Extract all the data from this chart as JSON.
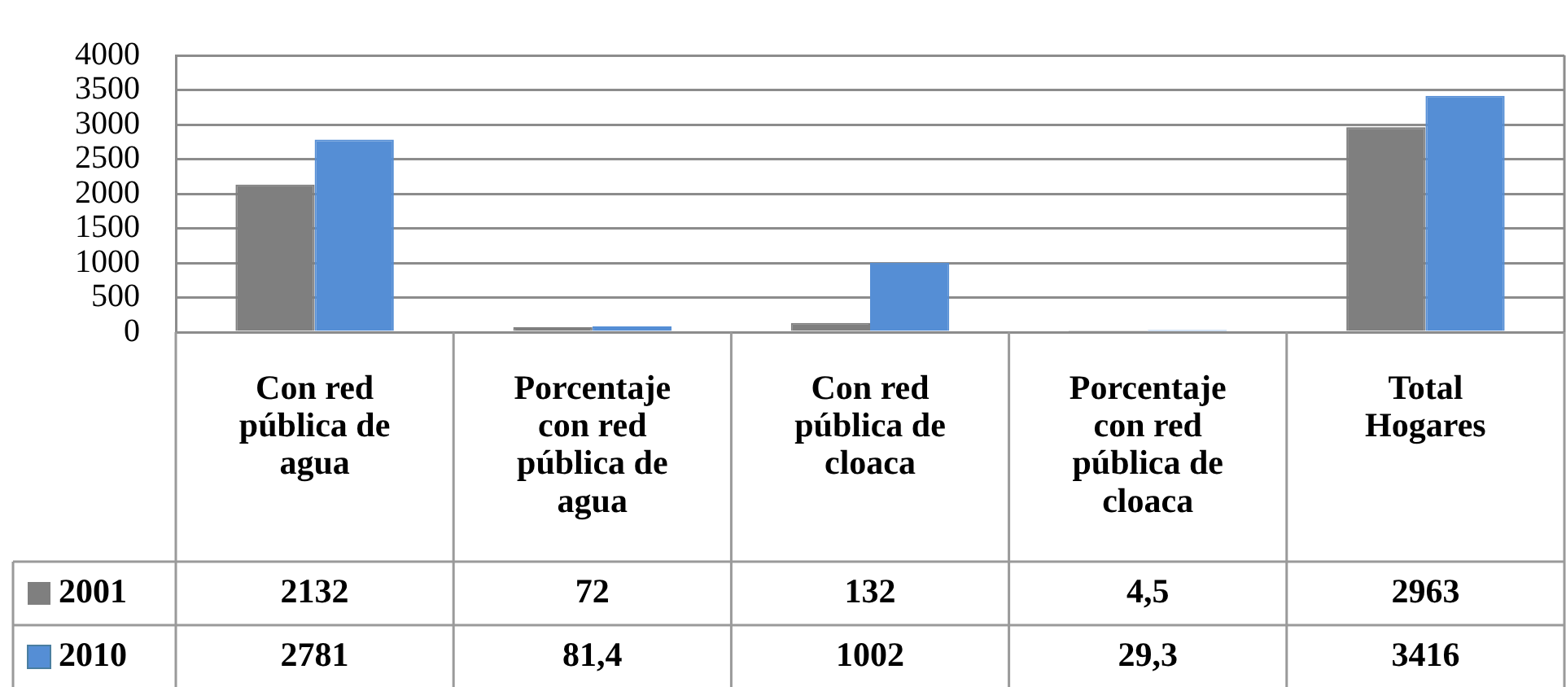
{
  "chart_data": {
    "type": "bar",
    "categories": [
      "Con red pública de agua",
      "Porcentaje con red pública de agua",
      "Con red pública de cloaca",
      "Porcentaje con red pública de cloaca",
      "Total Hogares"
    ],
    "series": [
      {
        "name": "2001",
        "color": "#7f7f7f",
        "values": [
          2132,
          72,
          132,
          4.5,
          2963
        ],
        "value_labels": [
          "2132",
          "72",
          "132",
          "4,5",
          "2963"
        ]
      },
      {
        "name": "2010",
        "color": "#558ed5",
        "values": [
          2781,
          81.4,
          1002,
          29.3,
          3416
        ],
        "value_labels": [
          "2781",
          "81,4",
          "1002",
          "29,3",
          "3416"
        ]
      }
    ],
    "ylim": [
      0,
      4000
    ],
    "yticks": [
      0,
      500,
      1000,
      1500,
      2000,
      2500,
      3000,
      3500,
      4000
    ],
    "grid": "y",
    "legend": "bottom left"
  }
}
